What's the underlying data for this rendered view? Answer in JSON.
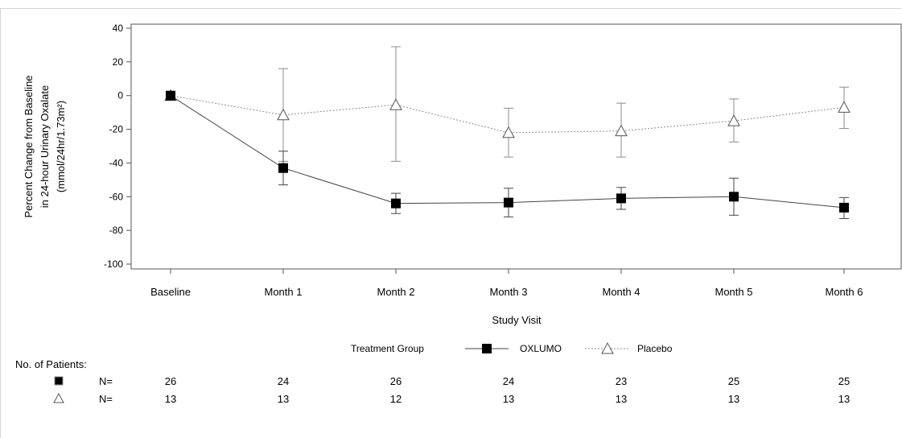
{
  "chart_data": {
    "type": "line",
    "title": "",
    "xlabel": "Study Visit",
    "ylabel_lines": [
      "Percent Change from Baseline",
      "in 24-hour Urinary Oxalate",
      "(mmol/24hr/1.73m²)"
    ],
    "categories": [
      "Baseline",
      "Month 1",
      "Month 2",
      "Month 3",
      "Month 4",
      "Month 5",
      "Month 6"
    ],
    "ylim": [
      -100,
      40
    ],
    "yticks": [
      "40",
      "20",
      "0",
      "-20",
      "-40",
      "-60",
      "-80",
      "-100"
    ],
    "ytick_values": [
      40,
      20,
      0,
      -20,
      -40,
      -60,
      -80,
      -100
    ],
    "grid": false,
    "legend_title": "Treatment Group",
    "series": [
      {
        "name": "OXLUMO",
        "marker": "filled-square",
        "line_style": "solid",
        "color": "#444444",
        "values": [
          0,
          -43,
          -64,
          -63.5,
          -61,
          -60,
          -66.5
        ],
        "err_low": [
          0,
          -53,
          -70,
          -72,
          -67.5,
          -71,
          -73
        ],
        "err_high": [
          0,
          -33,
          -58,
          -55,
          -54.5,
          -49,
          -60.5
        ]
      },
      {
        "name": "Placebo",
        "marker": "open-triangle",
        "line_style": "dotted",
        "color": "#8c8c8c",
        "values": [
          0,
          -11.5,
          -5.5,
          -22,
          -21,
          -15,
          -7
        ],
        "err_low": [
          0,
          -39,
          -39,
          -36.5,
          -36.5,
          -27.5,
          -19.5
        ],
        "err_high": [
          0,
          16,
          29,
          -7.5,
          -4.5,
          -2,
          5
        ]
      }
    ],
    "patients_table": {
      "title": "No. of Patients:",
      "rows": [
        {
          "marker": "filled-square",
          "label": "N=",
          "values": [
            "26",
            "24",
            "26",
            "24",
            "23",
            "25",
            "25"
          ]
        },
        {
          "marker": "open-triangle",
          "label": "N=",
          "values": [
            "13",
            "13",
            "12",
            "13",
            "13",
            "13",
            "13"
          ]
        }
      ]
    }
  }
}
